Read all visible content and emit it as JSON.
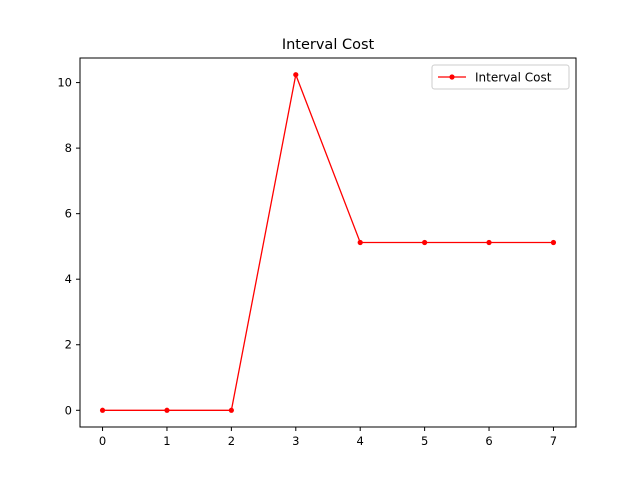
{
  "chart_data": {
    "type": "line",
    "title": "Interval Cost",
    "xlabel": "",
    "ylabel": "",
    "x": [
      0,
      1,
      2,
      3,
      4,
      5,
      6,
      7
    ],
    "xticks": [
      0,
      1,
      2,
      3,
      4,
      5,
      6,
      7
    ],
    "yticks": [
      0,
      2,
      4,
      6,
      8,
      10
    ],
    "xlim": [
      -0.35,
      7.35
    ],
    "ylim": [
      -0.51,
      10.75
    ],
    "series": [
      {
        "name": "Interval Cost",
        "color": "#ff0000",
        "marker": "circle",
        "values": [
          0,
          0,
          0,
          10.24,
          5.12,
          5.12,
          5.12,
          5.12
        ]
      }
    ],
    "grid": false,
    "legend_position": "top-right"
  }
}
